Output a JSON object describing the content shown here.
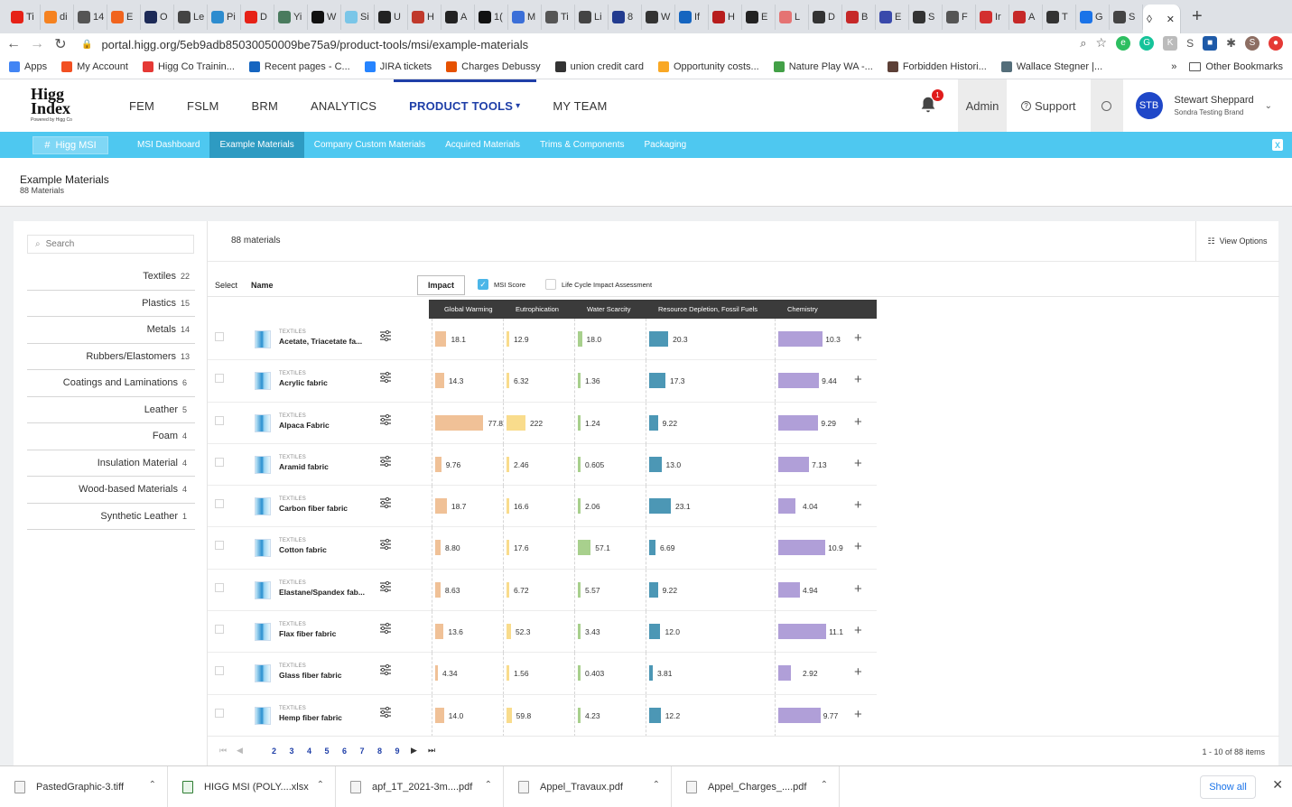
{
  "browser": {
    "tabs": [
      {
        "label": "Ti",
        "color": "#e62117"
      },
      {
        "label": "di",
        "color": "#f58220"
      },
      {
        "label": "14",
        "color": "#555555"
      },
      {
        "label": "E",
        "color": "#f1641e"
      },
      {
        "label": "O",
        "color": "#1d2a57"
      },
      {
        "label": "Le",
        "color": "#444444"
      },
      {
        "label": "Pi",
        "color": "#2d8ccf"
      },
      {
        "label": "D",
        "color": "#e62117"
      },
      {
        "label": "Yi",
        "color": "#4a7b5e"
      },
      {
        "label": "W",
        "color": "#111111"
      },
      {
        "label": "Si",
        "color": "#7ac6e8"
      },
      {
        "label": "U",
        "color": "#222222"
      },
      {
        "label": "H",
        "color": "#c0392b"
      },
      {
        "label": "A",
        "color": "#222222"
      },
      {
        "label": "1(",
        "color": "#111111"
      },
      {
        "label": "M",
        "color": "#3b6fd8"
      },
      {
        "label": "Ti",
        "color": "#555555"
      },
      {
        "label": "Li",
        "color": "#444444"
      },
      {
        "label": "8",
        "color": "#223b8f"
      },
      {
        "label": "W",
        "color": "#333333"
      },
      {
        "label": "If",
        "color": "#1565c0"
      },
      {
        "label": "H",
        "color": "#b71c1c"
      },
      {
        "label": "E",
        "color": "#222222"
      },
      {
        "label": "L",
        "color": "#e57373"
      },
      {
        "label": "D",
        "color": "#333333"
      },
      {
        "label": "B",
        "color": "#c62828"
      },
      {
        "label": "E",
        "color": "#3949ab"
      },
      {
        "label": "S",
        "color": "#333333"
      },
      {
        "label": "F",
        "color": "#555555"
      },
      {
        "label": "Ir",
        "color": "#d32f2f"
      },
      {
        "label": "A",
        "color": "#c62828"
      },
      {
        "label": "T",
        "color": "#333333"
      },
      {
        "label": "G",
        "color": "#1a73e8"
      },
      {
        "label": "S",
        "color": "#444444"
      }
    ],
    "url": "portal.higg.org/5eb9adb85030050009be75a9/product-tools/msi/example-materials",
    "bookmarks": [
      {
        "label": "Apps",
        "color": "#4285f4"
      },
      {
        "label": "My Account",
        "color": "#f25022"
      },
      {
        "label": "Higg Co Trainin...",
        "color": "#e53935"
      },
      {
        "label": "Recent pages - C...",
        "color": "#1565c0"
      },
      {
        "label": "JIRA tickets",
        "color": "#2684ff"
      },
      {
        "label": "Charges Debussy",
        "color": "#e65100"
      },
      {
        "label": "union credit card",
        "color": "#333333"
      },
      {
        "label": "Opportunity costs...",
        "color": "#f9a825"
      },
      {
        "label": "Nature Play WA -...",
        "color": "#43a047"
      },
      {
        "label": "Forbidden Histori...",
        "color": "#5d4037"
      },
      {
        "label": "Wallace Stegner |...",
        "color": "#546e7a"
      }
    ],
    "bookmarks_overflow": "»",
    "other_bookmarks": "Other Bookmarks"
  },
  "header": {
    "logo_line1": "Higg",
    "logo_line2": "Index",
    "logo_tagline": "Powered by Higg Co",
    "nav": [
      "FEM",
      "FSLM",
      "BRM",
      "ANALYTICS",
      "PRODUCT TOOLS",
      "MY TEAM"
    ],
    "notification_count": "1",
    "admin": "Admin",
    "support": "Support",
    "avatar_initials": "STB",
    "user_name": "Stewart Sheppard",
    "user_brand": "Sondra Testing Brand"
  },
  "subnav": {
    "product": "Higg MSI",
    "items": [
      "MSI Dashboard",
      "Example Materials",
      "Company Custom Materials",
      "Acquired Materials",
      "Trims & Components",
      "Packaging"
    ]
  },
  "page": {
    "title": "Example Materials",
    "subtitle": "88 Materials"
  },
  "sidebar": {
    "search_placeholder": "Search",
    "categories": [
      {
        "name": "Textiles",
        "count": "22"
      },
      {
        "name": "Plastics",
        "count": "15"
      },
      {
        "name": "Metals",
        "count": "14"
      },
      {
        "name": "Rubbers/Elastomers",
        "count": "13"
      },
      {
        "name": "Coatings and Laminations",
        "count": "6"
      },
      {
        "name": "Leather",
        "count": "5"
      },
      {
        "name": "Foam",
        "count": "4"
      },
      {
        "name": "Insulation Material",
        "count": "4"
      },
      {
        "name": "Wood-based Materials",
        "count": "4"
      },
      {
        "name": "Synthetic Leather",
        "count": "1"
      }
    ]
  },
  "table": {
    "count_label": "88 materials",
    "view_options": "View Options",
    "col_select": "Select",
    "col_name": "Name",
    "impact_button": "Impact",
    "msi_score_label": "MSI Score",
    "lca_label": "Life Cycle Impact Assessment",
    "metrics": [
      "Global Warming",
      "Eutrophication",
      "Water Scarcity",
      "Resource Depletion, Fossil Fuels",
      "Chemistry"
    ],
    "metric_colors": [
      "#f0c197",
      "#f9dc8c",
      "#a8d08d",
      "#4c97b5",
      "#b09fd8"
    ],
    "metric_max": [
      80,
      225,
      60,
      25,
      11.5
    ],
    "rows": [
      {
        "kind": "TEXTILES",
        "name": "Acetate, Triacetate fa...",
        "values": [
          "18.1",
          "12.9",
          "18.0",
          "20.3",
          "10.3"
        ]
      },
      {
        "kind": "TEXTILES",
        "name": "Acrylic fabric",
        "values": [
          "14.3",
          "6.32",
          "1.36",
          "17.3",
          "9.44"
        ]
      },
      {
        "kind": "TEXTILES",
        "name": "Alpaca Fabric",
        "values": [
          "77.8",
          "222",
          "1.24",
          "9.22",
          "9.29"
        ]
      },
      {
        "kind": "TEXTILES",
        "name": "Aramid fabric",
        "values": [
          "9.76",
          "2.46",
          "0.605",
          "13.0",
          "7.13"
        ]
      },
      {
        "kind": "TEXTILES",
        "name": "Carbon fiber fabric",
        "values": [
          "18.7",
          "16.6",
          "2.06",
          "23.1",
          "4.04"
        ]
      },
      {
        "kind": "TEXTILES",
        "name": "Cotton fabric",
        "values": [
          "8.80",
          "17.6",
          "57.1",
          "6.69",
          "10.9"
        ]
      },
      {
        "kind": "TEXTILES",
        "name": "Elastane/Spandex fab...",
        "values": [
          "8.63",
          "6.72",
          "5.57",
          "9.22",
          "4.94"
        ]
      },
      {
        "kind": "TEXTILES",
        "name": "Flax fiber fabric",
        "values": [
          "13.6",
          "52.3",
          "3.43",
          "12.0",
          "11.1"
        ]
      },
      {
        "kind": "TEXTILES",
        "name": "Glass fiber fabric",
        "values": [
          "4.34",
          "1.56",
          "0.403",
          "3.81",
          "2.92"
        ]
      },
      {
        "kind": "TEXTILES",
        "name": "Hemp fiber fabric",
        "values": [
          "14.0",
          "59.8",
          "4.23",
          "12.2",
          "9.77"
        ]
      }
    ]
  },
  "pager": {
    "pages": [
      "2",
      "3",
      "4",
      "5",
      "6",
      "7",
      "8",
      "9"
    ],
    "summary": "1 - 10 of 88 items"
  },
  "downloads": {
    "files": [
      {
        "name": "PastedGraphic-3.tiff",
        "type": "file"
      },
      {
        "name": "HIGG MSI (POLY....xlsx",
        "type": "excel"
      },
      {
        "name": "apf_1T_2021-3m....pdf",
        "type": "file"
      },
      {
        "name": "Appel_Travaux.pdf",
        "type": "file"
      },
      {
        "name": "Appel_Charges_....pdf",
        "type": "file"
      }
    ],
    "show_all": "Show all"
  }
}
